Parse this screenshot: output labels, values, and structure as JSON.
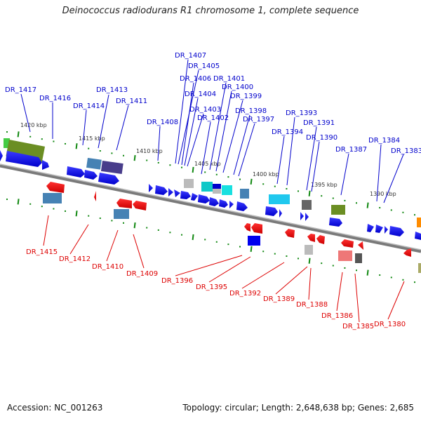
{
  "title": "Deinococcus radiodurans R1 chromosome 1, complete sequence",
  "footer": {
    "accession": "Accession: NC_001263",
    "summary": "Topology: circular; Length: 2,648,638 bp; Genes: 2,685"
  },
  "colors": {
    "forward_label": "#0000cc",
    "reverse_label": "#dd0000",
    "forward_gene": "#0000ee",
    "reverse_gene": "#ee0000",
    "backbone": "#888888",
    "tick": "#118811"
  },
  "scale_ticks": [
    "1420 kbp",
    "1415 kbp",
    "1410 kbp",
    "1405 kbp",
    "1400 kbp",
    "1395 kbp",
    "1390 kbp"
  ],
  "forward_labels": [
    "DR_1417",
    "DR_1416",
    "DR_1414",
    "DR_1413",
    "DR_1411",
    "DR_1408",
    "DR_1407",
    "DR_1405",
    "DR_1406",
    "DR_1404",
    "DR_1403",
    "DR_1402",
    "DR_1401",
    "DR_1400",
    "DR_1399",
    "DR_1398",
    "DR_1397",
    "DR_1394",
    "DR_1393",
    "DR_1391",
    "DR_1390",
    "DR_1387",
    "DR_1384",
    "DR_1383"
  ],
  "reverse_labels": [
    "DR_1415",
    "DR_1412",
    "DR_1410",
    "DR_1409",
    "DR_1396",
    "DR_1395",
    "DR_1392",
    "DR_1389",
    "DR_1388",
    "DR_1386",
    "DR_1385",
    "DR_1380"
  ]
}
